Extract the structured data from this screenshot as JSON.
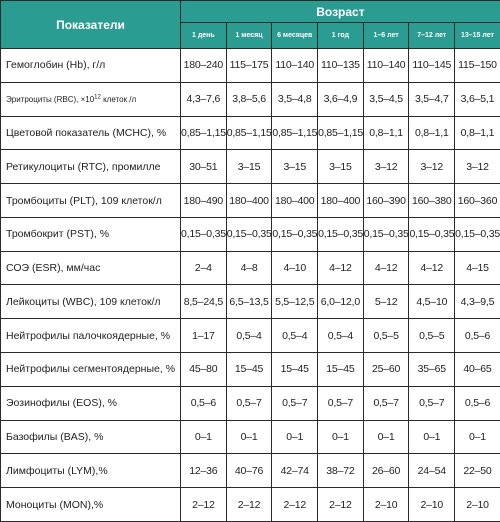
{
  "header": {
    "param_label": "Показатели",
    "age_label": "Возраст",
    "age_columns": [
      "1 день",
      "1 месяц",
      "6 месяцев",
      "1 год",
      "1–6 лет",
      "7–12 лет",
      "13–15 лет"
    ]
  },
  "rows": [
    {
      "name": "Гемоглобин (Hb), г/л",
      "values": [
        "180–240",
        "115–175",
        "110–140",
        "110–135",
        "110–140",
        "110–145",
        "115–150"
      ]
    },
    {
      "name_pre": "Эритроциты (RBC), ×10",
      "name_sup": "12",
      "name_post": " клеток /л",
      "values": [
        "4,3–7,6",
        "3,8–5,6",
        "3,5–4,8",
        "3,6–4,9",
        "3,5–4,5",
        "3,5–4,7",
        "3,6–5,1"
      ]
    },
    {
      "name": "Цветовой показатель (MCHC), %",
      "values": [
        "0,85–1,15",
        "0,85–1,15",
        "0,85–1,15",
        "0,85–1,15",
        "0,8–1,1",
        "0,8–1,1",
        "0,8–1,1"
      ]
    },
    {
      "name": "Ретикулоциты (RTC), промилле",
      "values": [
        "30–51",
        "3–15",
        "3–15",
        "3–15",
        "3–12",
        "3–12",
        "3–12"
      ]
    },
    {
      "name": "Тромбоциты (PLT), 109 клеток/л",
      "values": [
        "180–490",
        "180–400",
        "180–400",
        "180–400",
        "160–390",
        "160–380",
        "160–360"
      ]
    },
    {
      "name": "Тромбокрит (PST), %",
      "values": [
        "0,15–0,35",
        "0,15–0,35",
        "0,15–0,35",
        "0,15–0,35",
        "0,15–0,35",
        "0,15–0,35",
        "0,15–0,35"
      ]
    },
    {
      "name": "СОЭ (ESR), мм/час",
      "values": [
        "2–4",
        "4–8",
        "4–10",
        "4–12",
        "4–12",
        "4–12",
        "4–15"
      ]
    },
    {
      "name": "Лейкоциты (WBC), 109 клеток/л",
      "values": [
        "8,5–24,5",
        "6,5–13,5",
        "5,5–12,5",
        "6,0–12,0",
        "5–12",
        "4,5–10",
        "4,3–9,5"
      ]
    },
    {
      "name": "Нейтрофилы палочкоядерные, %",
      "values": [
        "1–17",
        "0,5–4",
        "0,5–4",
        "0,5–4",
        "0,5–5",
        "0,5–5",
        "0,5–6"
      ]
    },
    {
      "name": "Нейтрофилы сегментоядерные, %",
      "values": [
        "45–80",
        "15–45",
        "15–45",
        "15–45",
        "25–60",
        "35–65",
        "40–65"
      ]
    },
    {
      "name": "Эозинофилы (EOS), %",
      "values": [
        "0,5–6",
        "0,5–7",
        "0,5–7",
        "0,5–7",
        "0,5–7",
        "0,5–7",
        "0,5–6"
      ]
    },
    {
      "name": "Базофилы (BAS), %",
      "values": [
        "0–1",
        "0–1",
        "0–1",
        "0–1",
        "0–1",
        "0–1",
        "0–1"
      ]
    },
    {
      "name": "Лимфоциты (LYM),%",
      "values": [
        "12–36",
        "40–76",
        "42–74",
        "38–72",
        "26–60",
        "24–54",
        "22–50"
      ]
    },
    {
      "name": "Моноциты (MON),%",
      "values": [
        "2–12",
        "2–12",
        "2–12",
        "2–12",
        "2–10",
        "2–10",
        "2–10"
      ]
    }
  ]
}
